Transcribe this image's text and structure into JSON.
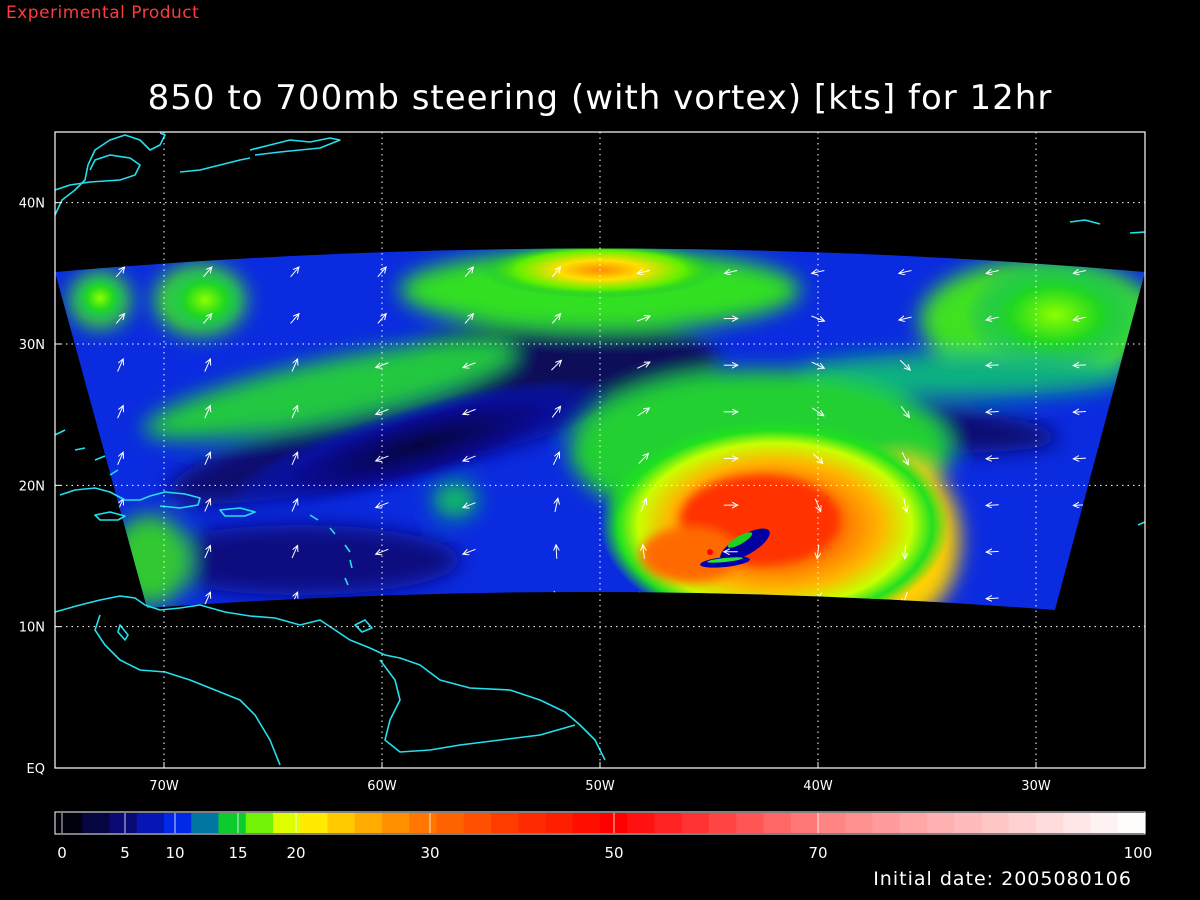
{
  "header": {
    "product_label": "Experimental Product",
    "title": "850 to 700mb steering (with vortex) [kts] for 12hr"
  },
  "footer": {
    "initial_date_text": "Initial date: 2005080106"
  },
  "map": {
    "lon_range": [
      -75,
      -25
    ],
    "lat_range": [
      0,
      45
    ],
    "lat_ticks": [
      {
        "value": 40,
        "label": "40N"
      },
      {
        "value": 30,
        "label": "30N"
      },
      {
        "value": 20,
        "label": "20N"
      },
      {
        "value": 10,
        "label": "10N"
      },
      {
        "value": 0,
        "label": "EQ"
      }
    ],
    "lon_ticks": [
      {
        "value": -70,
        "label": "70W"
      },
      {
        "value": -60,
        "label": "60W"
      },
      {
        "value": -50,
        "label": "50W"
      },
      {
        "value": -40,
        "label": "40W"
      },
      {
        "value": -30,
        "label": "30W"
      }
    ],
    "grid": "dotted",
    "coastline_color": "#22e0ee",
    "vortex_center": {
      "lon": -44,
      "lat": 16
    }
  },
  "colorbar": {
    "min": 0,
    "max": 100,
    "ticks": [
      {
        "value": 0,
        "label": "0"
      },
      {
        "value": 5,
        "label": "5"
      },
      {
        "value": 10,
        "label": "10"
      },
      {
        "value": 15,
        "label": "15"
      },
      {
        "value": 20,
        "label": "20"
      },
      {
        "value": 30,
        "label": "30"
      },
      {
        "value": 50,
        "label": "50"
      },
      {
        "value": 70,
        "label": "70"
      },
      {
        "value": 100,
        "label": "100"
      }
    ],
    "stops": [
      {
        "value": 0,
        "color": "#000000"
      },
      {
        "value": 5,
        "color": "#0a0a78"
      },
      {
        "value": 10,
        "color": "#0022ee"
      },
      {
        "value": 13,
        "color": "#008c8c"
      },
      {
        "value": 15,
        "color": "#10e010"
      },
      {
        "value": 18,
        "color": "#b0ff00"
      },
      {
        "value": 20,
        "color": "#ffff00"
      },
      {
        "value": 25,
        "color": "#ffb000"
      },
      {
        "value": 30,
        "color": "#ff7000"
      },
      {
        "value": 40,
        "color": "#ff3000"
      },
      {
        "value": 50,
        "color": "#ff0000"
      },
      {
        "value": 70,
        "color": "#ff8080"
      },
      {
        "value": 100,
        "color": "#ffffff"
      }
    ]
  }
}
